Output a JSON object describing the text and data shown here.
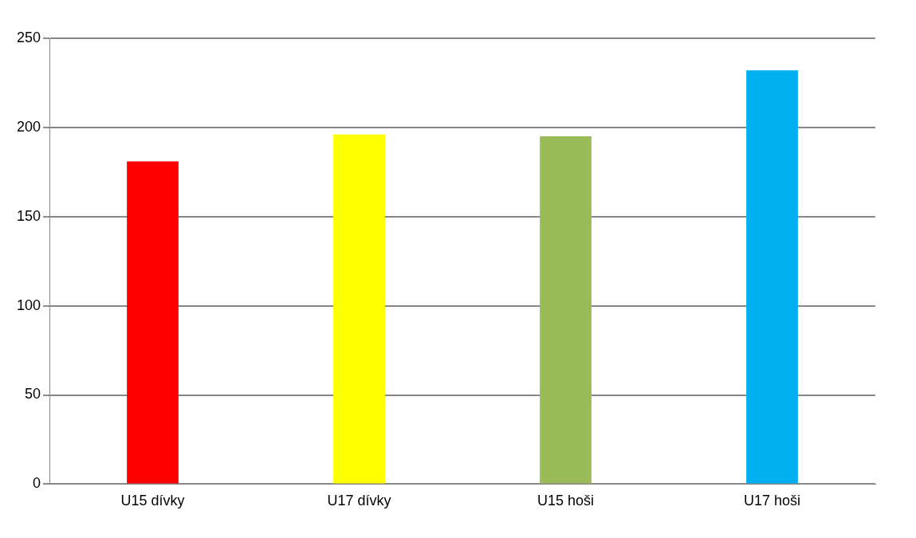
{
  "chart_data": {
    "type": "bar",
    "categories": [
      "U15 dívky",
      "U17 dívky",
      "U15 hoši",
      "U17 hoši"
    ],
    "values": [
      181,
      196,
      195,
      232
    ],
    "colors": [
      "#ff0000",
      "#ffff00",
      "#9bbb59",
      "#00b0f0"
    ],
    "ylim": [
      0,
      250
    ],
    "yticks": [
      0,
      50,
      100,
      150,
      200,
      250
    ],
    "grid": "y",
    "legend": false
  }
}
